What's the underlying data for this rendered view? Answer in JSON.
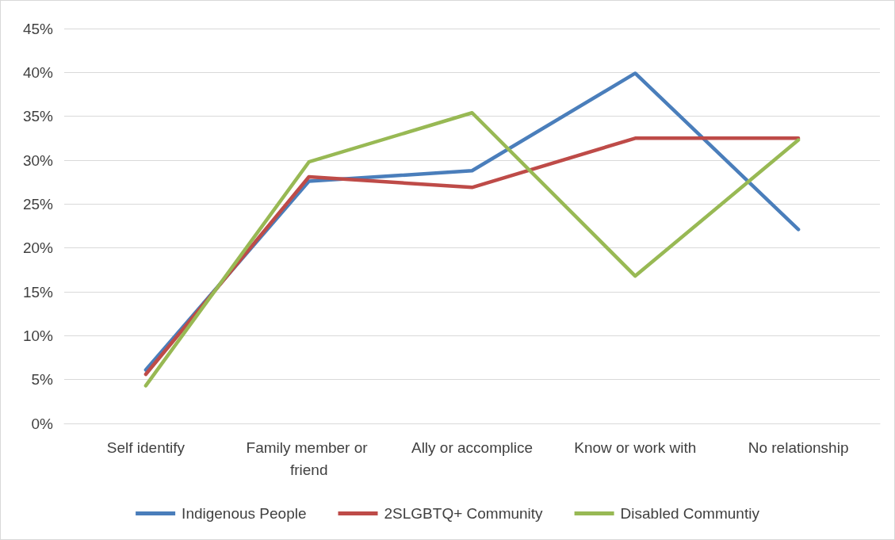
{
  "chart_data": {
    "type": "line",
    "categories": [
      "Self identify",
      "Family member or friend",
      "Ally or accomplice",
      "Know or work with",
      "No relationship"
    ],
    "series": [
      {
        "name": "Indigenous People",
        "color": "#4a7ebb",
        "values": [
          6.1,
          27.6,
          28.8,
          39.9,
          22.1
        ]
      },
      {
        "name": "2SLGBTQ+ Community",
        "color": "#be4b48",
        "values": [
          5.6,
          28.1,
          26.9,
          32.5,
          32.5
        ]
      },
      {
        "name": "Disabled Communtiy",
        "color": "#98b954",
        "values": [
          4.3,
          29.8,
          35.4,
          16.8,
          32.3
        ]
      }
    ],
    "ylim": [
      0,
      45
    ],
    "yticks": [
      {
        "value": 0,
        "label": "0%"
      },
      {
        "value": 5,
        "label": "5%"
      },
      {
        "value": 10,
        "label": "10%"
      },
      {
        "value": 15,
        "label": "15%"
      },
      {
        "value": 20,
        "label": "20%"
      },
      {
        "value": 25,
        "label": "25%"
      },
      {
        "value": 30,
        "label": "30%"
      },
      {
        "value": 35,
        "label": "35%"
      },
      {
        "value": 40,
        "label": "40%"
      },
      {
        "value": 45,
        "label": "45%"
      }
    ],
    "grid": "y",
    "legend": "bottom",
    "marker": "none",
    "line_style": "solid"
  }
}
